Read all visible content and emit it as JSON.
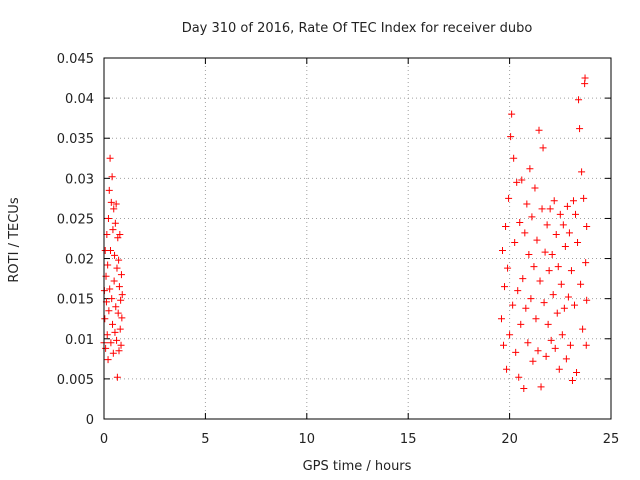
{
  "chart_data": {
    "type": "scatter",
    "title": "Day 310 of 2016, Rate Of TEC Index for receiver dubo",
    "xlabel": "GPS time / hours",
    "ylabel": "ROTI / TECUs",
    "xlim": [
      0,
      25
    ],
    "ylim": [
      0,
      0.045
    ],
    "xticks": [
      0,
      5,
      10,
      15,
      20,
      25
    ],
    "yticks": [
      0,
      0.005,
      0.01,
      0.015,
      0.02,
      0.025,
      0.03,
      0.035,
      0.04,
      0.045
    ],
    "xtick_labels": [
      "0",
      "5",
      "10",
      "15",
      "20",
      "25"
    ],
    "ytick_labels": [
      "0",
      "0.005",
      "0.01",
      "0.015",
      "0.02",
      "0.025",
      "0.03",
      "0.035",
      "0.04",
      "0.045"
    ],
    "grid": true,
    "marker": "+",
    "color": "#ff0000",
    "series": [
      {
        "name": "ROTI",
        "points": [
          [
            0.0,
            0.0095
          ],
          [
            0.02,
            0.016
          ],
          [
            0.04,
            0.0125
          ],
          [
            0.06,
            0.021
          ],
          [
            0.08,
            0.0088
          ],
          [
            0.1,
            0.0178
          ],
          [
            0.12,
            0.0146
          ],
          [
            0.14,
            0.023
          ],
          [
            0.16,
            0.0105
          ],
          [
            0.18,
            0.0192
          ],
          [
            0.2,
            0.0074
          ],
          [
            0.22,
            0.025
          ],
          [
            0.24,
            0.0135
          ],
          [
            0.26,
            0.0285
          ],
          [
            0.28,
            0.0162
          ],
          [
            0.3,
            0.0325
          ],
          [
            0.32,
            0.021
          ],
          [
            0.34,
            0.0095
          ],
          [
            0.36,
            0.027
          ],
          [
            0.38,
            0.015
          ],
          [
            0.4,
            0.0302
          ],
          [
            0.42,
            0.0118
          ],
          [
            0.44,
            0.0236
          ],
          [
            0.46,
            0.0082
          ],
          [
            0.48,
            0.0262
          ],
          [
            0.5,
            0.0172
          ],
          [
            0.52,
            0.0204
          ],
          [
            0.54,
            0.0108
          ],
          [
            0.56,
            0.0244
          ],
          [
            0.58,
            0.014
          ],
          [
            0.6,
            0.0268
          ],
          [
            0.62,
            0.0098
          ],
          [
            0.64,
            0.0188
          ],
          [
            0.66,
            0.0052
          ],
          [
            0.68,
            0.0226
          ],
          [
            0.7,
            0.0132
          ],
          [
            0.72,
            0.0198
          ],
          [
            0.74,
            0.0085
          ],
          [
            0.76,
            0.0165
          ],
          [
            0.78,
            0.023
          ],
          [
            0.8,
            0.0112
          ],
          [
            0.82,
            0.0148
          ],
          [
            0.84,
            0.0092
          ],
          [
            0.86,
            0.018
          ],
          [
            0.88,
            0.0126
          ],
          [
            0.9,
            0.0155
          ],
          [
            19.6,
            0.0125
          ],
          [
            19.65,
            0.021
          ],
          [
            19.7,
            0.0092
          ],
          [
            19.75,
            0.0165
          ],
          [
            19.8,
            0.024
          ],
          [
            19.85,
            0.0062
          ],
          [
            19.9,
            0.0188
          ],
          [
            19.95,
            0.0275
          ],
          [
            20.0,
            0.0105
          ],
          [
            20.05,
            0.0352
          ],
          [
            20.1,
            0.038
          ],
          [
            20.15,
            0.0142
          ],
          [
            20.2,
            0.0325
          ],
          [
            20.25,
            0.022
          ],
          [
            20.3,
            0.0083
          ],
          [
            20.35,
            0.0295
          ],
          [
            20.4,
            0.016
          ],
          [
            20.45,
            0.0052
          ],
          [
            20.5,
            0.0245
          ],
          [
            20.55,
            0.0118
          ],
          [
            20.6,
            0.0298
          ],
          [
            20.65,
            0.0175
          ],
          [
            20.7,
            0.0038
          ],
          [
            20.75,
            0.0232
          ],
          [
            20.8,
            0.0138
          ],
          [
            20.85,
            0.0268
          ],
          [
            20.9,
            0.0095
          ],
          [
            20.95,
            0.0205
          ],
          [
            21.0,
            0.0312
          ],
          [
            21.05,
            0.015
          ],
          [
            21.1,
            0.0252
          ],
          [
            21.15,
            0.0072
          ],
          [
            21.2,
            0.019
          ],
          [
            21.25,
            0.0288
          ],
          [
            21.3,
            0.0125
          ],
          [
            21.35,
            0.0223
          ],
          [
            21.4,
            0.0085
          ],
          [
            21.45,
            0.036
          ],
          [
            21.5,
            0.0172
          ],
          [
            21.55,
            0.004
          ],
          [
            21.6,
            0.0262
          ],
          [
            21.65,
            0.0338
          ],
          [
            21.7,
            0.0145
          ],
          [
            21.75,
            0.0208
          ],
          [
            21.8,
            0.0078
          ],
          [
            21.85,
            0.0242
          ],
          [
            21.9,
            0.0118
          ],
          [
            21.95,
            0.0185
          ],
          [
            22.0,
            0.0262
          ],
          [
            22.05,
            0.0098
          ],
          [
            22.1,
            0.0205
          ],
          [
            22.15,
            0.0155
          ],
          [
            22.2,
            0.0272
          ],
          [
            22.25,
            0.0088
          ],
          [
            22.3,
            0.023
          ],
          [
            22.35,
            0.0132
          ],
          [
            22.4,
            0.019
          ],
          [
            22.45,
            0.0062
          ],
          [
            22.5,
            0.0255
          ],
          [
            22.55,
            0.0168
          ],
          [
            22.6,
            0.0105
          ],
          [
            22.65,
            0.0242
          ],
          [
            22.7,
            0.0138
          ],
          [
            22.75,
            0.0215
          ],
          [
            22.8,
            0.0075
          ],
          [
            22.85,
            0.0265
          ],
          [
            22.9,
            0.0152
          ],
          [
            22.95,
            0.0232
          ],
          [
            23.0,
            0.0092
          ],
          [
            23.05,
            0.0185
          ],
          [
            23.1,
            0.0048
          ],
          [
            23.15,
            0.0272
          ],
          [
            23.2,
            0.0142
          ],
          [
            23.25,
            0.0255
          ],
          [
            23.3,
            0.0058
          ],
          [
            23.35,
            0.022
          ],
          [
            23.4,
            0.0398
          ],
          [
            23.45,
            0.0362
          ],
          [
            23.5,
            0.0168
          ],
          [
            23.55,
            0.0308
          ],
          [
            23.6,
            0.0112
          ],
          [
            23.65,
            0.0275
          ],
          [
            23.7,
            0.0418
          ],
          [
            23.72,
            0.0425
          ],
          [
            23.75,
            0.0195
          ],
          [
            23.78,
            0.0092
          ],
          [
            23.8,
            0.024
          ],
          [
            23.8,
            0.0148
          ]
        ]
      }
    ]
  }
}
